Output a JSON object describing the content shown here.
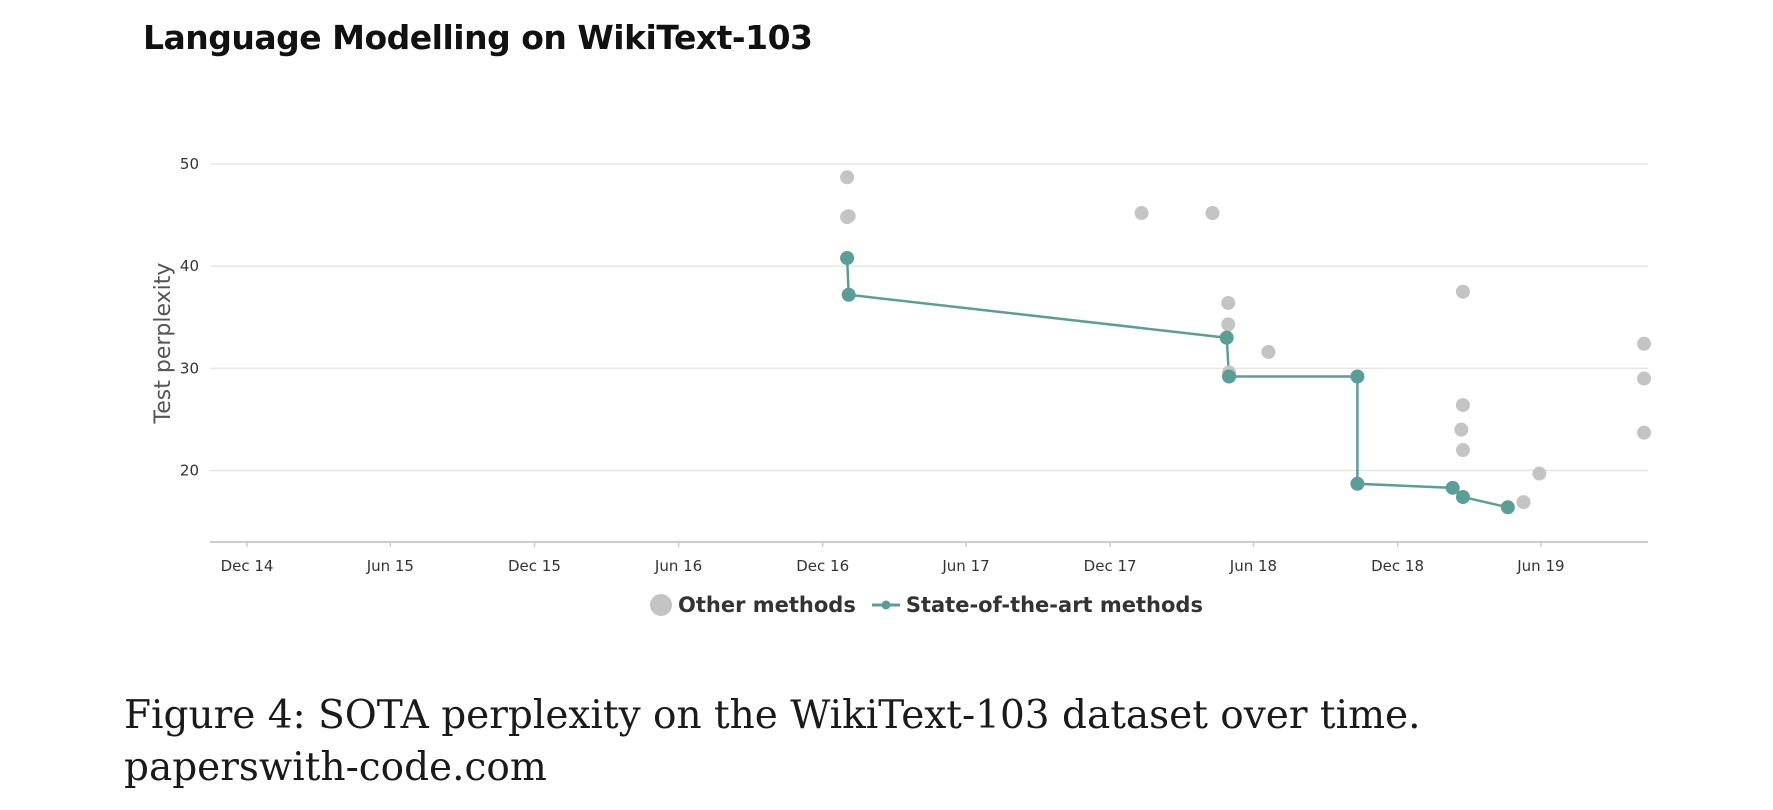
{
  "title": "Language Modelling on WikiText-103",
  "caption": "Figure 4: SOTA perplexity on the WikiText-103 dataset over time. paperswith-code.com",
  "colors": {
    "sota": "#5b9e95",
    "other": "#c4c4c4",
    "grid": "#e6e6e6",
    "axis": "#cccccc"
  },
  "chart_data": {
    "type": "scatter",
    "ylabel": "Test perplexity",
    "xlabel": "",
    "x_ticks": [
      "Dec 14",
      "Jun 15",
      "Dec 15",
      "Jun 16",
      "Dec 16",
      "Jun 17",
      "Dec 17",
      "Jun 18",
      "Dec 18",
      "Jun 19"
    ],
    "y_ticks": [
      20,
      30,
      40,
      50
    ],
    "xlim": [
      "2014-10-15",
      "2019-10-15"
    ],
    "ylim": [
      13,
      50
    ],
    "grid": true,
    "legend": "bottom-center",
    "series": [
      {
        "name": "Other methods",
        "mode": "markers",
        "points": [
          {
            "x": "2017-01-01",
            "y": 48.7
          },
          {
            "x": "2017-01-01",
            "y": 44.8
          },
          {
            "x": "2017-01-03",
            "y": 44.9
          },
          {
            "x": "2018-01-10",
            "y": 45.2
          },
          {
            "x": "2018-04-10",
            "y": 45.2
          },
          {
            "x": "2018-04-30",
            "y": 36.4
          },
          {
            "x": "2018-04-30",
            "y": 34.3
          },
          {
            "x": "2018-05-01",
            "y": 29.6
          },
          {
            "x": "2018-06-20",
            "y": 31.6
          },
          {
            "x": "2019-02-20",
            "y": 24.0
          },
          {
            "x": "2019-02-22",
            "y": 37.5
          },
          {
            "x": "2019-02-22",
            "y": 26.4
          },
          {
            "x": "2019-02-22",
            "y": 22.0
          },
          {
            "x": "2019-05-10",
            "y": 16.9
          },
          {
            "x": "2019-05-30",
            "y": 19.7
          },
          {
            "x": "2019-10-10",
            "y": 32.4
          },
          {
            "x": "2019-10-10",
            "y": 29.0
          },
          {
            "x": "2019-10-10",
            "y": 23.7
          }
        ]
      },
      {
        "name": "State-of-the-art methods",
        "mode": "lines+markers",
        "points": [
          {
            "x": "2017-01-01",
            "y": 40.8
          },
          {
            "x": "2017-01-03",
            "y": 37.2
          },
          {
            "x": "2018-04-28",
            "y": 33.0
          },
          {
            "x": "2018-05-01",
            "y": 29.2
          },
          {
            "x": "2018-10-11",
            "y": 29.2
          },
          {
            "x": "2018-10-11",
            "y": 18.7
          },
          {
            "x": "2019-02-09",
            "y": 18.3
          },
          {
            "x": "2019-02-22",
            "y": 17.4
          },
          {
            "x": "2019-04-20",
            "y": 16.4
          }
        ]
      }
    ]
  }
}
